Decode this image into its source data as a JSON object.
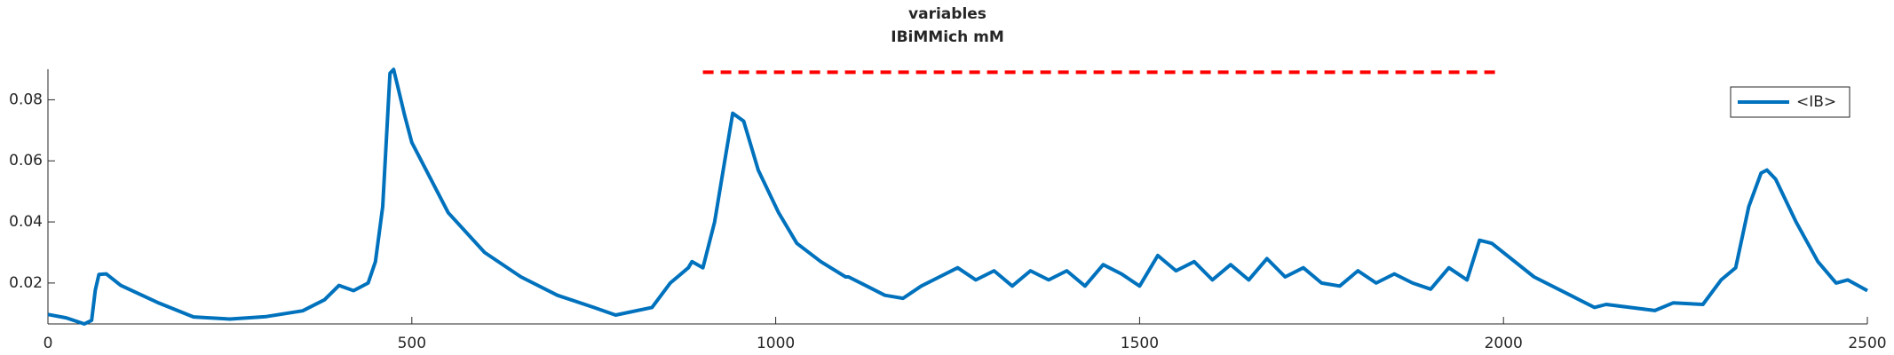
{
  "chart_data": {
    "type": "line",
    "title": [
      "variables",
      "IBiMMich mM"
    ],
    "xlim": [
      0,
      2500
    ],
    "ylim": [
      0.0066,
      0.09
    ],
    "xticks": [
      0,
      500,
      1000,
      1500,
      2000,
      2500
    ],
    "yticks": [
      0.02,
      0.04,
      0.06,
      0.08
    ],
    "grid": false,
    "legend": "northeast",
    "series": [
      {
        "name": "<IB>",
        "color": "#0072bd",
        "x": [
          0,
          25,
          50,
          60,
          65,
          70,
          80,
          100,
          150,
          200,
          250,
          300,
          350,
          380,
          400,
          420,
          440,
          450,
          460,
          470,
          475,
          480,
          490,
          500,
          550,
          600,
          650,
          700,
          750,
          780,
          830,
          855,
          880,
          885,
          900,
          916,
          930,
          941,
          956,
          976,
          1004,
          1029,
          1062,
          1096,
          1100,
          1125,
          1150,
          1175,
          1200,
          1225,
          1250,
          1275,
          1300,
          1325,
          1350,
          1375,
          1400,
          1425,
          1450,
          1475,
          1500,
          1525,
          1550,
          1575,
          1600,
          1625,
          1650,
          1675,
          1700,
          1725,
          1750,
          1775,
          1800,
          1825,
          1850,
          1875,
          1900,
          1925,
          1950,
          1967,
          1984,
          2042,
          2092,
          2125,
          2141,
          2208,
          2233,
          2274,
          2299,
          2319,
          2337,
          2354,
          2362,
          2374,
          2402,
          2432,
          2457,
          2473,
          2500
        ],
        "values": [
          0.0097,
          0.0086,
          0.0066,
          0.0078,
          0.0176,
          0.0228,
          0.023,
          0.0192,
          0.0137,
          0.0089,
          0.0082,
          0.009,
          0.0109,
          0.0145,
          0.0192,
          0.0175,
          0.02,
          0.027,
          0.045,
          0.0887,
          0.0899,
          0.085,
          0.075,
          0.066,
          0.043,
          0.03,
          0.022,
          0.016,
          0.012,
          0.0095,
          0.012,
          0.02,
          0.025,
          0.027,
          0.025,
          0.04,
          0.06,
          0.0756,
          0.073,
          0.057,
          0.043,
          0.033,
          0.027,
          0.022,
          0.022,
          0.019,
          0.016,
          0.015,
          0.019,
          0.022,
          0.025,
          0.021,
          0.024,
          0.019,
          0.024,
          0.021,
          0.024,
          0.019,
          0.026,
          0.023,
          0.019,
          0.029,
          0.024,
          0.027,
          0.021,
          0.026,
          0.021,
          0.028,
          0.022,
          0.025,
          0.02,
          0.019,
          0.024,
          0.02,
          0.023,
          0.02,
          0.018,
          0.025,
          0.021,
          0.034,
          0.033,
          0.022,
          0.016,
          0.012,
          0.013,
          0.011,
          0.0135,
          0.013,
          0.021,
          0.025,
          0.045,
          0.056,
          0.057,
          0.054,
          0.04,
          0.027,
          0.02,
          0.021,
          0.0175
        ]
      },
      {
        "color": "#ff0000",
        "dash": true,
        "x": [
          900,
          1990
        ],
        "values": [
          0.089,
          0.089
        ]
      }
    ]
  }
}
